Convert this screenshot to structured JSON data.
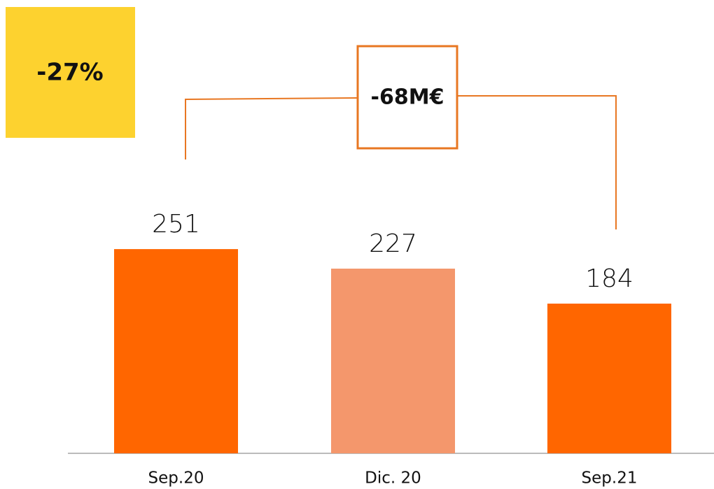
{
  "chart_data": {
    "type": "bar",
    "categories": [
      "Sep.20",
      "Dic. 20",
      "Sep.21"
    ],
    "values": [
      251,
      227,
      184
    ],
    "colors": [
      "#ff6600",
      "#f4976c",
      "#ff6600"
    ],
    "annotations": {
      "change_percent": "-27%",
      "change_amount": "-68M€"
    }
  }
}
